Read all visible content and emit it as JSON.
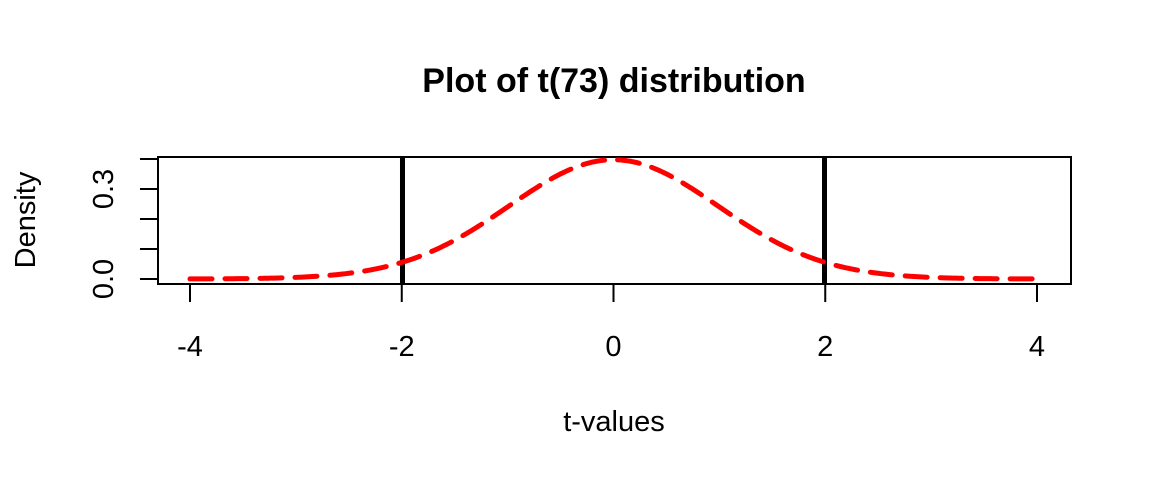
{
  "chart_data": {
    "type": "line",
    "title": "Plot of t(73) distribution",
    "xlabel": "t-values",
    "ylabel": "Density",
    "degrees_of_freedom": 73,
    "xlim": [
      -4,
      4
    ],
    "ylim": [
      0,
      0.4
    ],
    "x_ticks": [
      -4,
      -2,
      0,
      2,
      4
    ],
    "y_ticks": [
      0.0,
      0.1,
      0.2,
      0.3,
      0.4
    ],
    "y_tick_labels": [
      "0.0",
      "",
      "",
      "0.3",
      ""
    ],
    "grid": false,
    "series": [
      {
        "style": "dashed",
        "color": "#ff0000",
        "x": [
          -4.0,
          -3.5,
          -3.0,
          -2.5,
          -2.2,
          -2.0,
          -1.5,
          -1.0,
          -0.5,
          0.0,
          0.5,
          1.0,
          1.5,
          2.0,
          2.2,
          2.5,
          3.0,
          3.5,
          4.0
        ],
        "y": [
          0.0002,
          0.0012,
          0.005,
          0.0186,
          0.037,
          0.0551,
          0.129,
          0.2403,
          0.3506,
          0.3976,
          0.3506,
          0.2403,
          0.129,
          0.0551,
          0.037,
          0.0186,
          0.005,
          0.0012,
          0.0002
        ]
      }
    ],
    "critical_values": [
      -1.993,
      1.993
    ],
    "critical_line_color": "#000000"
  }
}
